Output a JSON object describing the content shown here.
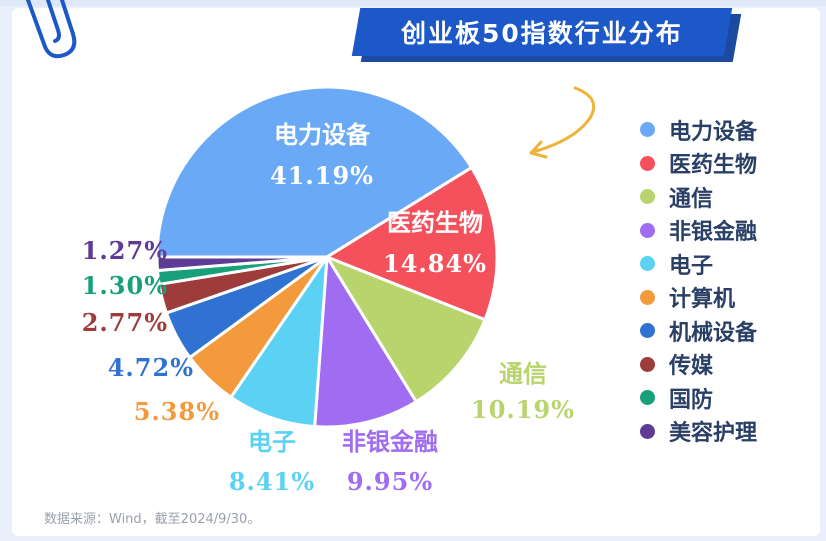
{
  "chart_data": {
    "type": "pie",
    "title": "创业板50指数行业分布",
    "slices": [
      {
        "label": "电力设备",
        "value": 41.19,
        "value_text": "41.19%",
        "color": "#6aa9f6"
      },
      {
        "label": "医药生物",
        "value": 14.84,
        "value_text": "14.84%",
        "color": "#f4515d"
      },
      {
        "label": "通信",
        "value": 10.19,
        "value_text": "10.19%",
        "color": "#b8d46c"
      },
      {
        "label": "非银金融",
        "value": 9.95,
        "value_text": "9.95%",
        "color": "#a06cf2"
      },
      {
        "label": "电子",
        "value": 8.41,
        "value_text": "8.41%",
        "color": "#5bd2f4"
      },
      {
        "label": "计算机",
        "value": 5.38,
        "value_text": "5.38%",
        "color": "#f39a3c"
      },
      {
        "label": "机械设备",
        "value": 4.72,
        "value_text": "4.72%",
        "color": "#2f72d1"
      },
      {
        "label": "传媒",
        "value": 2.77,
        "value_text": "2.77%",
        "color": "#9e3b3b"
      },
      {
        "label": "国防",
        "value": 1.3,
        "value_text": "1.30%",
        "color": "#17a07a"
      },
      {
        "label": "美容护理",
        "value": 1.27,
        "value_text": "1.27%",
        "color": "#5e3b94"
      }
    ],
    "legend_position": "right",
    "start": "9 o'clock",
    "direction": "clockwise"
  },
  "source_note": "数据来源：Wind，截至2024/9/30。",
  "colors": {
    "title_bg": "#1d58c8",
    "title_shadow": "#1b4aa0",
    "arrow": "#f0b33a",
    "page_bg": "#e9f0fb",
    "clip": "#1d58c8"
  }
}
